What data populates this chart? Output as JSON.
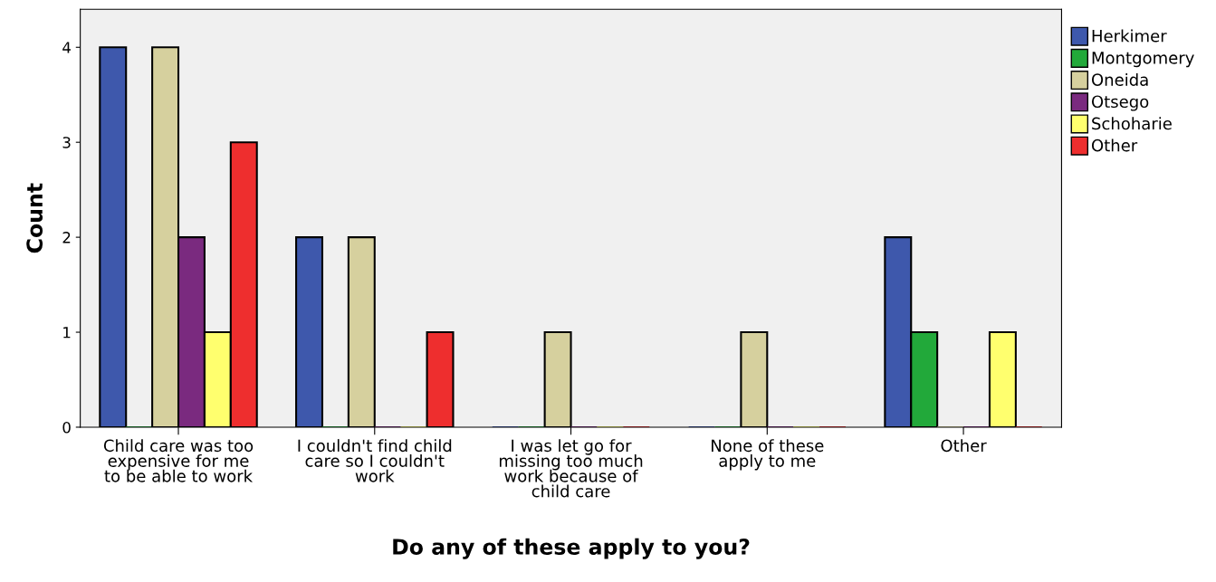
{
  "chart_data": {
    "type": "bar",
    "xlabel": "Do any of these apply to you?",
    "ylabel": "Count",
    "categories": [
      "Child care was too\nexpensive for me\nto be able to work",
      "I couldn't find child\ncare so I couldn't\nwork",
      "I was let go for\nmissing too much\nwork because of\nchild care",
      "None of these\napply to me",
      "Other"
    ],
    "series": [
      {
        "name": "Herkimer",
        "color": "#3e58ac",
        "values": [
          4,
          2,
          0,
          0,
          2
        ]
      },
      {
        "name": "Montgomery",
        "color": "#22a93a",
        "values": [
          0,
          0,
          0,
          0,
          1
        ]
      },
      {
        "name": "Oneida",
        "color": "#d6d09e",
        "values": [
          4,
          2,
          1,
          1,
          0
        ]
      },
      {
        "name": "Otsego",
        "color": "#7a2a7f",
        "values": [
          2,
          0,
          0,
          0,
          0
        ]
      },
      {
        "name": "Schoharie",
        "color": "#ffff6e",
        "values": [
          1,
          0,
          0,
          0,
          1
        ]
      },
      {
        "name": "Other",
        "color": "#ee2e2e",
        "values": [
          3,
          1,
          0,
          0,
          0
        ]
      }
    ],
    "ylim": [
      0,
      4.4
    ],
    "yticks": [
      0,
      1,
      2,
      3,
      4
    ],
    "grid": false,
    "legend": "top right"
  }
}
